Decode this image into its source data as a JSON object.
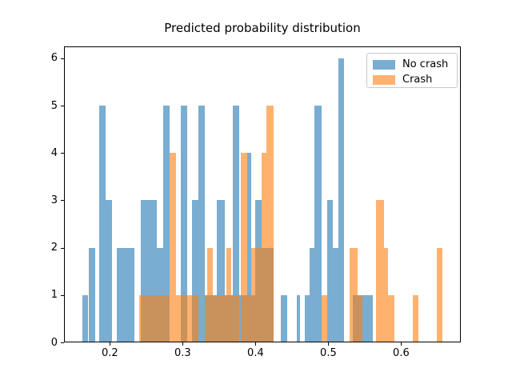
{
  "title": "Predicted probability distribution",
  "chart_data": {
    "type": "bar",
    "subtype": "histogram",
    "title": "Predicted probability distribution",
    "xlabel": "",
    "ylabel": "",
    "xlim": [
      0.137,
      0.682
    ],
    "ylim": [
      0,
      6.25
    ],
    "grid": false,
    "legend_position": "upper right",
    "xticks": [
      "0.2",
      "0.3",
      "0.4",
      "0.5",
      "0.6"
    ],
    "xtick_values": [
      0.2,
      0.3,
      0.4,
      0.5,
      0.6
    ],
    "yticks": [
      "0",
      "1",
      "2",
      "3",
      "4",
      "5",
      "6"
    ],
    "ytick_values": [
      0,
      1,
      2,
      3,
      4,
      5,
      6
    ],
    "series": [
      {
        "name": "No crash",
        "color": "#1f77b4",
        "alpha": 0.6,
        "bars": [
          {
            "x0": 0.1618,
            "x1": 0.1705,
            "count": 1
          },
          {
            "x0": 0.1705,
            "x1": 0.1793,
            "count": 2
          },
          {
            "x0": 0.1854,
            "x1": 0.1942,
            "count": 5
          },
          {
            "x0": 0.1942,
            "x1": 0.203,
            "count": 3
          },
          {
            "x0": 0.2096,
            "x1": 0.2337,
            "count": 2
          },
          {
            "x0": 0.2425,
            "x1": 0.2645,
            "count": 3
          },
          {
            "x0": 0.2645,
            "x1": 0.2733,
            "count": 2
          },
          {
            "x0": 0.2733,
            "x1": 0.2821,
            "count": 5
          },
          {
            "x0": 0.2975,
            "x1": 0.3063,
            "count": 5
          },
          {
            "x0": 0.3129,
            "x1": 0.3217,
            "count": 3
          },
          {
            "x0": 0.3217,
            "x1": 0.3305,
            "count": 5
          },
          {
            "x0": 0.3305,
            "x1": 0.3469,
            "count": 1
          },
          {
            "x0": 0.3469,
            "x1": 0.3579,
            "count": 3
          },
          {
            "x0": 0.3579,
            "x1": 0.3689,
            "count": 1
          },
          {
            "x0": 0.3689,
            "x1": 0.3777,
            "count": 5
          },
          {
            "x0": 0.3777,
            "x1": 0.3882,
            "count": 1
          },
          {
            "x0": 0.3882,
            "x1": 0.3942,
            "count": 4
          },
          {
            "x0": 0.3942,
            "x1": 0.3997,
            "count": 1
          },
          {
            "x0": 0.3997,
            "x1": 0.4085,
            "count": 3
          },
          {
            "x0": 0.4085,
            "x1": 0.425,
            "count": 2
          },
          {
            "x0": 0.4348,
            "x1": 0.4436,
            "count": 1
          },
          {
            "x0": 0.4568,
            "x1": 0.4612,
            "count": 1
          },
          {
            "x0": 0.4678,
            "x1": 0.4744,
            "count": 1
          },
          {
            "x0": 0.4744,
            "x1": 0.481,
            "count": 2
          },
          {
            "x0": 0.481,
            "x1": 0.4909,
            "count": 5
          },
          {
            "x0": 0.4986,
            "x1": 0.5063,
            "count": 3
          },
          {
            "x0": 0.5063,
            "x1": 0.514,
            "count": 2
          },
          {
            "x0": 0.514,
            "x1": 0.5216,
            "count": 6
          },
          {
            "x0": 0.5338,
            "x1": 0.5612,
            "count": 1
          }
        ]
      },
      {
        "name": "Crash",
        "color": "#ff7f0e",
        "alpha": 0.6,
        "bars": [
          {
            "x0": 0.2403,
            "x1": 0.2821,
            "count": 1
          },
          {
            "x0": 0.2821,
            "x1": 0.2909,
            "count": 4
          },
          {
            "x0": 0.2909,
            "x1": 0.3217,
            "count": 1
          },
          {
            "x0": 0.3305,
            "x1": 0.3337,
            "count": 1
          },
          {
            "x0": 0.3337,
            "x1": 0.3414,
            "count": 2
          },
          {
            "x0": 0.3414,
            "x1": 0.3601,
            "count": 1
          },
          {
            "x0": 0.3601,
            "x1": 0.3667,
            "count": 2
          },
          {
            "x0": 0.3667,
            "x1": 0.3777,
            "count": 1
          },
          {
            "x0": 0.3799,
            "x1": 0.3882,
            "count": 4
          },
          {
            "x0": 0.3882,
            "x1": 0.3942,
            "count": 1
          },
          {
            "x0": 0.3942,
            "x1": 0.4085,
            "count": 2
          },
          {
            "x0": 0.4085,
            "x1": 0.4151,
            "count": 4
          },
          {
            "x0": 0.4151,
            "x1": 0.425,
            "count": 5
          },
          {
            "x0": 0.4909,
            "x1": 0.4986,
            "count": 1
          },
          {
            "x0": 0.5294,
            "x1": 0.5404,
            "count": 2
          },
          {
            "x0": 0.5404,
            "x1": 0.5469,
            "count": 1
          },
          {
            "x0": 0.5656,
            "x1": 0.5766,
            "count": 3
          },
          {
            "x0": 0.5766,
            "x1": 0.5821,
            "count": 2
          },
          {
            "x0": 0.5821,
            "x1": 0.5909,
            "count": 1
          },
          {
            "x0": 0.6162,
            "x1": 0.6238,
            "count": 1
          },
          {
            "x0": 0.6491,
            "x1": 0.6568,
            "count": 2
          }
        ]
      }
    ]
  }
}
